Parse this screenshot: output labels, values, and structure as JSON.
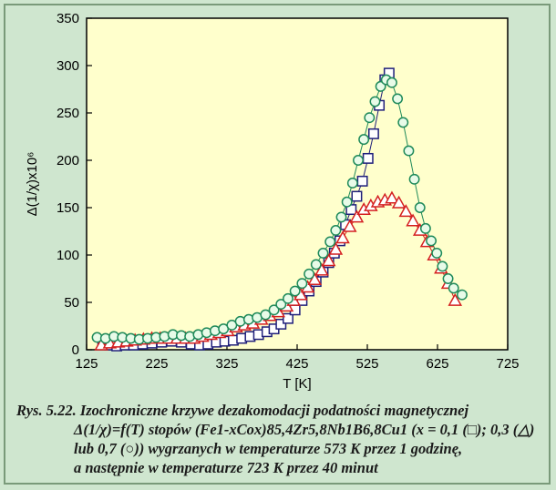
{
  "chart_data": {
    "type": "scatter",
    "xlabel": "T [K]",
    "ylabel": "Δ(1/χ)x10⁶",
    "xlim": [
      125,
      725
    ],
    "ylim": [
      0,
      350
    ],
    "xticks": [
      125,
      225,
      325,
      425,
      525,
      625,
      725
    ],
    "yticks": [
      0,
      50,
      100,
      150,
      200,
      250,
      300,
      350
    ],
    "grid": false,
    "plot_background": "#ffffcc",
    "series": [
      {
        "marker": "square",
        "color": "#1f1f7a",
        "connected": true,
        "points": [
          [
            148,
            8
          ],
          [
            158,
            5
          ],
          [
            168,
            4
          ],
          [
            180,
            5
          ],
          [
            192,
            5
          ],
          [
            205,
            6
          ],
          [
            218,
            7
          ],
          [
            232,
            8
          ],
          [
            246,
            9
          ],
          [
            260,
            8
          ],
          [
            274,
            6
          ],
          [
            286,
            5
          ],
          [
            298,
            6
          ],
          [
            310,
            8
          ],
          [
            322,
            9
          ],
          [
            334,
            10
          ],
          [
            346,
            12
          ],
          [
            358,
            14
          ],
          [
            370,
            16
          ],
          [
            382,
            19
          ],
          [
            392,
            22
          ],
          [
            402,
            27
          ],
          [
            412,
            33
          ],
          [
            422,
            42
          ],
          [
            432,
            52
          ],
          [
            442,
            62
          ],
          [
            452,
            72
          ],
          [
            462,
            82
          ],
          [
            470,
            92
          ],
          [
            478,
            102
          ],
          [
            486,
            115
          ],
          [
            494,
            132
          ],
          [
            502,
            148
          ],
          [
            510,
            162
          ],
          [
            518,
            178
          ],
          [
            526,
            202
          ],
          [
            534,
            228
          ],
          [
            542,
            258
          ],
          [
            550,
            285
          ],
          [
            556,
            292
          ]
        ]
      },
      {
        "marker": "triangle",
        "color": "#d42020",
        "connected": true,
        "points": [
          [
            146,
            5
          ],
          [
            158,
            7
          ],
          [
            170,
            8
          ],
          [
            182,
            9
          ],
          [
            194,
            10
          ],
          [
            206,
            11
          ],
          [
            218,
            12
          ],
          [
            230,
            12
          ],
          [
            242,
            12
          ],
          [
            254,
            12
          ],
          [
            266,
            12
          ],
          [
            278,
            12
          ],
          [
            290,
            14
          ],
          [
            302,
            16
          ],
          [
            314,
            18
          ],
          [
            326,
            20
          ],
          [
            338,
            24
          ],
          [
            350,
            26
          ],
          [
            362,
            28
          ],
          [
            374,
            32
          ],
          [
            386,
            36
          ],
          [
            398,
            40
          ],
          [
            410,
            46
          ],
          [
            420,
            52
          ],
          [
            430,
            58
          ],
          [
            440,
            66
          ],
          [
            450,
            74
          ],
          [
            460,
            84
          ],
          [
            470,
            94
          ],
          [
            480,
            106
          ],
          [
            490,
            118
          ],
          [
            500,
            130
          ],
          [
            510,
            140
          ],
          [
            520,
            148
          ],
          [
            530,
            152
          ],
          [
            540,
            156
          ],
          [
            550,
            158
          ],
          [
            560,
            160
          ],
          [
            570,
            155
          ],
          [
            580,
            146
          ],
          [
            590,
            136
          ],
          [
            600,
            126
          ],
          [
            610,
            114
          ],
          [
            620,
            100
          ],
          [
            630,
            86
          ],
          [
            640,
            70
          ],
          [
            650,
            52
          ]
        ]
      },
      {
        "marker": "circle",
        "color": "#1f8a5a",
        "connected": true,
        "points": [
          [
            140,
            13
          ],
          [
            152,
            12
          ],
          [
            164,
            14
          ],
          [
            176,
            13
          ],
          [
            188,
            12
          ],
          [
            200,
            11
          ],
          [
            212,
            12
          ],
          [
            224,
            13
          ],
          [
            236,
            14
          ],
          [
            248,
            16
          ],
          [
            260,
            15
          ],
          [
            272,
            14
          ],
          [
            284,
            16
          ],
          [
            296,
            18
          ],
          [
            308,
            20
          ],
          [
            320,
            22
          ],
          [
            332,
            26
          ],
          [
            344,
            30
          ],
          [
            356,
            32
          ],
          [
            368,
            34
          ],
          [
            380,
            37
          ],
          [
            392,
            42
          ],
          [
            402,
            48
          ],
          [
            412,
            54
          ],
          [
            422,
            62
          ],
          [
            432,
            70
          ],
          [
            442,
            80
          ],
          [
            452,
            90
          ],
          [
            462,
            102
          ],
          [
            472,
            114
          ],
          [
            480,
            126
          ],
          [
            488,
            140
          ],
          [
            496,
            156
          ],
          [
            504,
            176
          ],
          [
            512,
            200
          ],
          [
            520,
            222
          ],
          [
            528,
            245
          ],
          [
            536,
            262
          ],
          [
            544,
            278
          ],
          [
            552,
            285
          ],
          [
            560,
            282
          ],
          [
            568,
            265
          ],
          [
            576,
            240
          ],
          [
            584,
            210
          ],
          [
            592,
            180
          ],
          [
            600,
            150
          ],
          [
            608,
            128
          ],
          [
            616,
            115
          ],
          [
            624,
            102
          ],
          [
            632,
            88
          ],
          [
            640,
            75
          ],
          [
            648,
            65
          ],
          [
            660,
            58
          ]
        ]
      }
    ]
  },
  "caption": {
    "line1": "Rys. 5.22. Izochroniczne krzywe dezakomodacji podatności magnetycznej",
    "line2": "Δ(1/χ)=f(T) stopów (Fe1-xCox)85,4Zr5,8Nb1B6,8Cu1 (x = 0,1 (□); 0,3 (△)",
    "line3": "lub 0,7 (○)) wygrzanych w temperaturze 573 K przez 1 godzinę,",
    "line4": "a następnie w temperaturze 723 K przez 40 minut"
  }
}
